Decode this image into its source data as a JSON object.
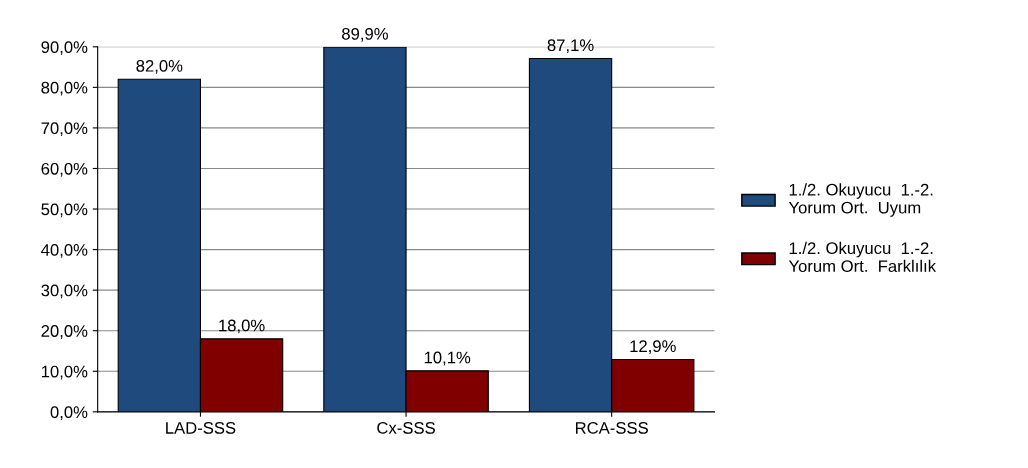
{
  "chart_data": {
    "type": "bar",
    "categories": [
      "LAD-SSS",
      "Cx-SSS",
      "RCA-SSS"
    ],
    "series": [
      {
        "name": "1./2. Okuyucu  1.-2.\nYorum Ort.  Uyum",
        "color": "#1f4a7e",
        "values": [
          82.0,
          89.9,
          87.1
        ],
        "value_labels": [
          "82,0%",
          "89,9%",
          "87,1%"
        ]
      },
      {
        "name": "1./2. Okuyucu  1.-2.\nYorum Ort.  Farklılık",
        "color": "#800000",
        "values": [
          18.0,
          10.1,
          12.9
        ],
        "value_labels": [
          "18,0%",
          "10,1%",
          "12,9%"
        ]
      }
    ],
    "ylim": [
      0,
      90
    ],
    "yticks": [
      {
        "value": 0,
        "label": "0,0%"
      },
      {
        "value": 10,
        "label": "10,0%"
      },
      {
        "value": 20,
        "label": "20,0%"
      },
      {
        "value": 30,
        "label": "30,0%"
      },
      {
        "value": 40,
        "label": "40,0%"
      },
      {
        "value": 50,
        "label": "50,0%"
      },
      {
        "value": 60,
        "label": "60,0%"
      },
      {
        "value": 70,
        "label": "70,0%"
      },
      {
        "value": 80,
        "label": "80,0%"
      },
      {
        "value": 90,
        "label": "90,0%"
      }
    ],
    "grid": "y",
    "legend": "right"
  }
}
